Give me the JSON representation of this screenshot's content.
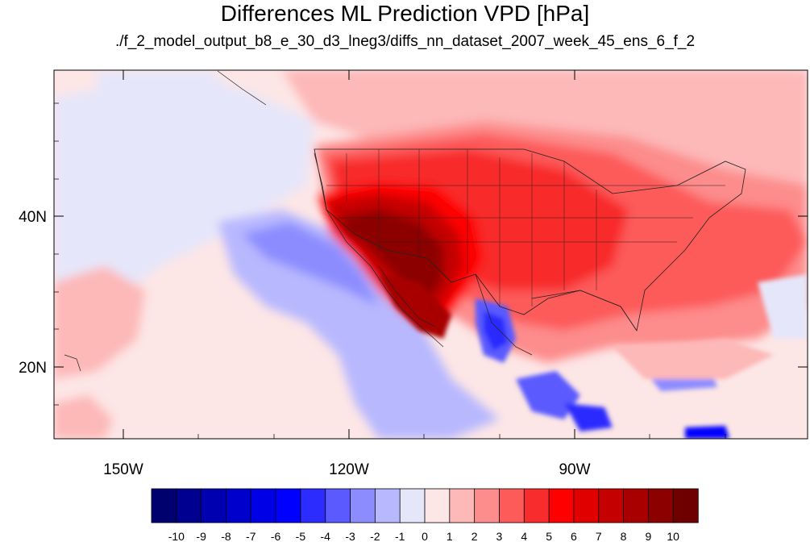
{
  "title": "Differences ML Prediction VPD [hPa]",
  "subtitle": "./f_2_model_output_b8_e_30_d3_lneg3/diffs_nn_dataset_2007_week_45_ens_6_f_2",
  "map": {
    "projection": "cylindrical-equidistant",
    "region": "North America and eastern Pacific",
    "lon_labels": [
      "150W",
      "120W",
      "90W"
    ],
    "lat_labels": [
      "40N",
      "20N"
    ],
    "highlights": [
      "Strongest positive differences (dark red, ~+8 to +10 hPa) over the southwestern United States and Baja California",
      "Positive differences (red) over most of the contiguous United States and western Atlantic",
      "Negative differences (blue, ~-2 to -6 hPa) over the eastern Pacific off California and Mexico and the Gulf of California / Mexican Pacific coast",
      "Near-zero values over the open central Pacific"
    ]
  },
  "colorbar": {
    "orientation": "horizontal",
    "levels": [
      "-10",
      "-9",
      "-8",
      "-7",
      "-6",
      "-5",
      "-4",
      "-3",
      "-2",
      "-1",
      "0",
      "1",
      "2",
      "3",
      "4",
      "5",
      "6",
      "7",
      "8",
      "9",
      "10"
    ],
    "colors": [
      "#00006e",
      "#000090",
      "#0000b0",
      "#0000cc",
      "#0000e6",
      "#0000ff",
      "#2c2cff",
      "#5a5aff",
      "#8c8cff",
      "#b8b8ff",
      "#e6e6fa",
      "#fde6e6",
      "#fdb8b8",
      "#fd8c8c",
      "#fd5a5a",
      "#f82c2c",
      "#ff0000",
      "#e00000",
      "#c40000",
      "#a80000",
      "#8c0000",
      "#6e0000"
    ]
  }
}
